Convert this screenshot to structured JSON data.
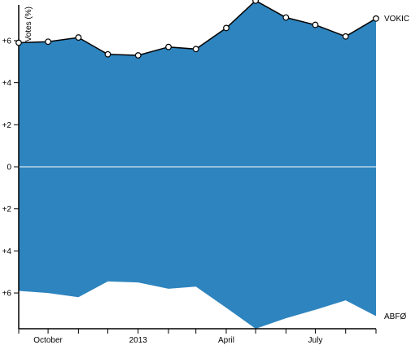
{
  "chart_data": {
    "type": "area",
    "title": "",
    "xlabel": "",
    "ylabel": "Votes (%)",
    "x": [
      "2012-09-01",
      "2012-10-01",
      "2012-11-01",
      "2012-12-01",
      "2013-01-01",
      "2013-02-01",
      "2013-03-01",
      "2013-04-01",
      "2013-05-01",
      "2013-06-01",
      "2013-07-01",
      "2013-08-01",
      "2013-09-01"
    ],
    "series": [
      {
        "name": "VOKIC",
        "values": [
          5.9,
          5.95,
          6.15,
          5.35,
          5.3,
          5.7,
          5.6,
          6.6,
          7.9,
          7.1,
          6.75,
          6.2,
          7.05
        ]
      },
      {
        "name": "ABFØ",
        "values": [
          5.9,
          6.0,
          6.2,
          5.45,
          5.5,
          5.8,
          5.7,
          6.7,
          7.7,
          7.2,
          6.8,
          6.35,
          7.1
        ]
      }
    ],
    "ylim": [
      -7.7,
      7.7
    ],
    "y_ticks": [
      {
        "value": 6,
        "label": "+6"
      },
      {
        "value": 4,
        "label": "+4"
      },
      {
        "value": 2,
        "label": "+2"
      },
      {
        "value": 0,
        "label": "0"
      },
      {
        "value": -2,
        "label": "+2"
      },
      {
        "value": -4,
        "label": "+4"
      },
      {
        "value": -6,
        "label": "+6"
      }
    ],
    "x_tick_labels": [
      {
        "date": "2012-10-01",
        "label": "October"
      },
      {
        "date": "2013-01-01",
        "label": "2013"
      },
      {
        "date": "2013-04-01",
        "label": "April"
      },
      {
        "date": "2013-07-01",
        "label": "July"
      }
    ],
    "colors": {
      "area": "#2e84be",
      "line": "#000000",
      "point_fill": "#ffffff"
    },
    "grid": false,
    "legend": "none"
  }
}
